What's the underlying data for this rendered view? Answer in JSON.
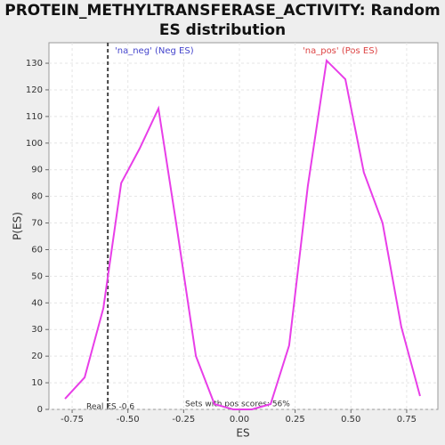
{
  "chart_data": {
    "type": "line",
    "title": "PROTEIN_METHYLTRANSFERASE_ACTIVITY: Random",
    "subtitle": "ES distribution",
    "xlabel": "ES",
    "ylabel": "P(ES)",
    "x": [
      -0.782,
      -0.694,
      -0.61,
      -0.53,
      -0.447,
      -0.363,
      -0.28,
      -0.195,
      -0.112,
      -0.028,
      0.056,
      0.14,
      0.223,
      0.307,
      0.391,
      0.475,
      0.558,
      0.642,
      0.726,
      0.81
    ],
    "series": [
      {
        "name": "P(ES)",
        "color": "#e83ee8",
        "values": [
          4,
          12,
          38,
          85,
          98,
          113,
          68,
          20,
          2,
          0,
          0,
          2,
          24,
          84,
          131,
          124,
          89,
          70,
          31,
          5
        ]
      }
    ],
    "xlim": [
      -0.854,
      0.89
    ],
    "ylim": [
      0,
      137.7
    ],
    "xticks": [
      -0.75,
      {
        "value": -0.5,
        "label": "-0.50"
      },
      -0.25,
      {
        "value": 0,
        "label": "0.00"
      },
      0.25,
      {
        "value": 0.5,
        "label": "0.50"
      },
      0.75
    ],
    "yticks": [
      0,
      10,
      20,
      30,
      40,
      50,
      60,
      70,
      80,
      90,
      100,
      110,
      120,
      130
    ],
    "grid": true,
    "real_es_line": -0.59,
    "annotations": [
      "'na_neg' (Neg ES)",
      "'na_pos' (Pos ES)",
      "Real ES -0.6",
      "Sets with pos scores: 56%"
    ]
  }
}
